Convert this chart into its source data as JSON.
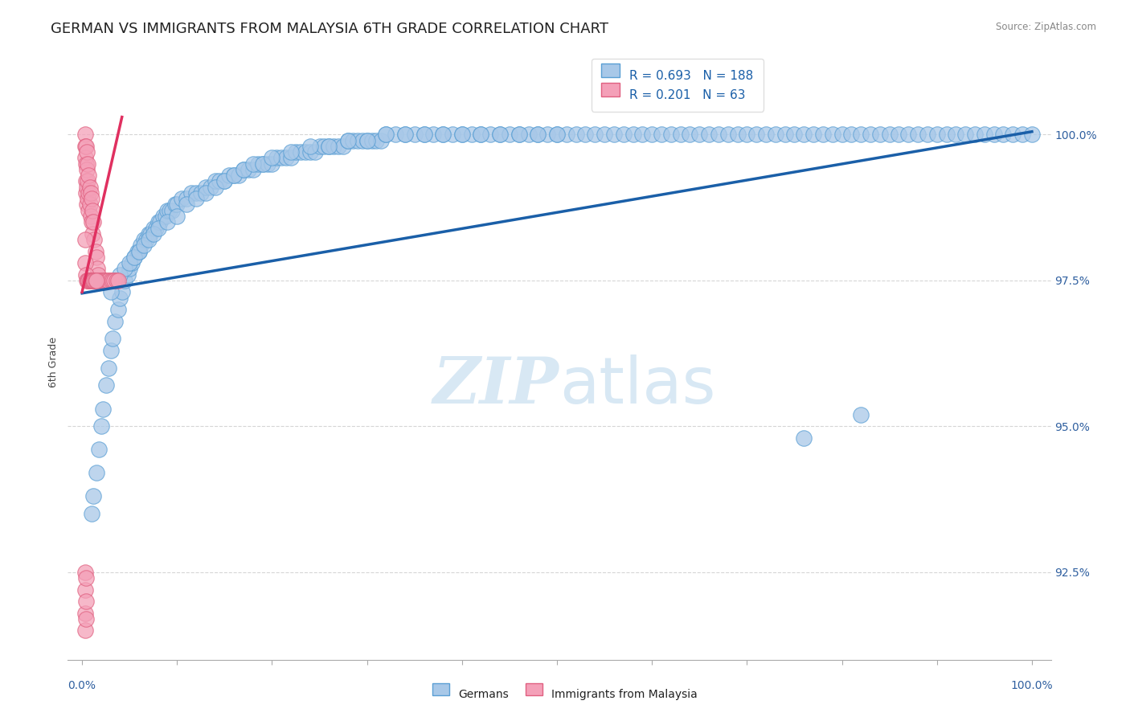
{
  "title": "GERMAN VS IMMIGRANTS FROM MALAYSIA 6TH GRADE CORRELATION CHART",
  "source_text": "Source: ZipAtlas.com",
  "ylabel": "6th Grade",
  "y_ticks": [
    92.5,
    95.0,
    97.5,
    100.0
  ],
  "y_tick_labels": [
    "92.5%",
    "95.0%",
    "97.5%",
    "100.0%"
  ],
  "blue_R": 0.693,
  "blue_N": 188,
  "pink_R": 0.201,
  "pink_N": 63,
  "blue_color": "#a8c8e8",
  "blue_edge_color": "#5a9fd4",
  "pink_color": "#f4a0b8",
  "pink_edge_color": "#e06080",
  "blue_line_color": "#1a5fa8",
  "pink_line_color": "#e03060",
  "legend_R_color": "#1a5fa8",
  "watermark_color": "#d8e8f4",
  "background_color": "#ffffff",
  "title_fontsize": 13,
  "axis_label_fontsize": 9,
  "legend_fontsize": 11,
  "marker_size": 14,
  "blue_line_x": [
    0,
    100
  ],
  "blue_line_y": [
    97.28,
    100.05
  ],
  "pink_line_x": [
    0,
    4.2
  ],
  "pink_line_y": [
    97.3,
    100.3
  ],
  "xlim": [
    -1.5,
    102
  ],
  "ylim": [
    91.0,
    101.2
  ],
  "blue_scatter_x": [
    1.0,
    1.2,
    1.5,
    1.8,
    2.0,
    2.2,
    2.5,
    2.8,
    3.0,
    3.2,
    3.5,
    3.8,
    4.0,
    4.2,
    4.5,
    4.8,
    5.0,
    5.2,
    5.5,
    5.8,
    6.0,
    6.2,
    6.5,
    6.8,
    7.0,
    7.2,
    7.5,
    7.8,
    8.0,
    8.2,
    8.5,
    8.8,
    9.0,
    9.2,
    9.5,
    9.8,
    10.0,
    10.5,
    11.0,
    11.5,
    12.0,
    12.5,
    13.0,
    13.5,
    14.0,
    14.5,
    15.0,
    15.5,
    16.0,
    16.5,
    17.0,
    17.5,
    18.0,
    18.5,
    19.0,
    19.5,
    20.0,
    20.5,
    21.0,
    21.5,
    22.0,
    22.5,
    23.0,
    23.5,
    24.0,
    24.5,
    25.0,
    25.5,
    26.0,
    26.5,
    27.0,
    27.5,
    28.0,
    28.5,
    29.0,
    29.5,
    30.0,
    30.5,
    31.0,
    31.5,
    32.0,
    33.0,
    34.0,
    35.0,
    36.0,
    37.0,
    38.0,
    39.0,
    40.0,
    41.0,
    42.0,
    43.0,
    44.0,
    45.0,
    46.0,
    47.0,
    48.0,
    49.0,
    50.0,
    51.0,
    52.0,
    53.0,
    54.0,
    55.0,
    56.0,
    57.0,
    58.0,
    59.0,
    60.0,
    61.0,
    62.0,
    63.0,
    64.0,
    65.0,
    66.0,
    67.0,
    68.0,
    69.0,
    70.0,
    71.0,
    72.0,
    73.0,
    74.0,
    75.0,
    76.0,
    77.0,
    78.0,
    79.0,
    80.0,
    81.0,
    82.0,
    83.0,
    84.0,
    85.0,
    86.0,
    87.0,
    88.0,
    89.0,
    90.0,
    91.0,
    92.0,
    93.0,
    94.0,
    95.0,
    96.0,
    97.0,
    98.0,
    99.0,
    100.0,
    3.0,
    3.5,
    4.0,
    4.5,
    5.0,
    5.5,
    6.0,
    6.5,
    7.0,
    7.5,
    8.0,
    9.0,
    10.0,
    11.0,
    12.0,
    13.0,
    14.0,
    15.0,
    16.0,
    17.0,
    18.0,
    19.0,
    20.0,
    22.0,
    24.0,
    26.0,
    28.0,
    30.0,
    32.0,
    34.0,
    36.0,
    38.0,
    40.0,
    42.0,
    44.0,
    46.0,
    48.0,
    50.0,
    76.0,
    82.0
  ],
  "blue_scatter_y": [
    93.5,
    93.8,
    94.2,
    94.6,
    95.0,
    95.3,
    95.7,
    96.0,
    96.3,
    96.5,
    96.8,
    97.0,
    97.2,
    97.3,
    97.5,
    97.6,
    97.7,
    97.8,
    97.9,
    98.0,
    98.0,
    98.1,
    98.2,
    98.2,
    98.3,
    98.3,
    98.4,
    98.4,
    98.5,
    98.5,
    98.6,
    98.6,
    98.7,
    98.7,
    98.7,
    98.8,
    98.8,
    98.9,
    98.9,
    99.0,
    99.0,
    99.0,
    99.1,
    99.1,
    99.2,
    99.2,
    99.2,
    99.3,
    99.3,
    99.3,
    99.4,
    99.4,
    99.4,
    99.5,
    99.5,
    99.5,
    99.5,
    99.6,
    99.6,
    99.6,
    99.6,
    99.7,
    99.7,
    99.7,
    99.7,
    99.7,
    99.8,
    99.8,
    99.8,
    99.8,
    99.8,
    99.8,
    99.9,
    99.9,
    99.9,
    99.9,
    99.9,
    99.9,
    99.9,
    99.9,
    100.0,
    100.0,
    100.0,
    100.0,
    100.0,
    100.0,
    100.0,
    100.0,
    100.0,
    100.0,
    100.0,
    100.0,
    100.0,
    100.0,
    100.0,
    100.0,
    100.0,
    100.0,
    100.0,
    100.0,
    100.0,
    100.0,
    100.0,
    100.0,
    100.0,
    100.0,
    100.0,
    100.0,
    100.0,
    100.0,
    100.0,
    100.0,
    100.0,
    100.0,
    100.0,
    100.0,
    100.0,
    100.0,
    100.0,
    100.0,
    100.0,
    100.0,
    100.0,
    100.0,
    100.0,
    100.0,
    100.0,
    100.0,
    100.0,
    100.0,
    100.0,
    100.0,
    100.0,
    100.0,
    100.0,
    100.0,
    100.0,
    100.0,
    100.0,
    100.0,
    100.0,
    100.0,
    100.0,
    100.0,
    100.0,
    100.0,
    100.0,
    100.0,
    100.0,
    97.3,
    97.5,
    97.6,
    97.7,
    97.8,
    97.9,
    98.0,
    98.1,
    98.2,
    98.3,
    98.4,
    98.5,
    98.6,
    98.8,
    98.9,
    99.0,
    99.1,
    99.2,
    99.3,
    99.4,
    99.5,
    99.5,
    99.6,
    99.7,
    99.8,
    99.8,
    99.9,
    99.9,
    100.0,
    100.0,
    100.0,
    100.0,
    100.0,
    100.0,
    100.0,
    100.0,
    100.0,
    100.0,
    94.8,
    95.2
  ],
  "pink_scatter_x": [
    0.3,
    0.3,
    0.3,
    0.4,
    0.4,
    0.4,
    0.4,
    0.5,
    0.5,
    0.5,
    0.5,
    0.6,
    0.6,
    0.6,
    0.7,
    0.7,
    0.7,
    0.8,
    0.8,
    0.9,
    0.9,
    1.0,
    1.0,
    1.1,
    1.1,
    1.2,
    1.3,
    1.4,
    1.5,
    1.6,
    1.7,
    1.8,
    2.0,
    2.2,
    2.4,
    2.6,
    2.8,
    3.0,
    3.2,
    3.4,
    3.6,
    3.8,
    0.3,
    0.3,
    0.4,
    0.5,
    0.6,
    0.7,
    0.8,
    0.9,
    1.0,
    1.1,
    1.2,
    1.3,
    1.4,
    1.5,
    0.3,
    0.3,
    0.3,
    0.3,
    0.4,
    0.4,
    0.4
  ],
  "pink_scatter_y": [
    100.0,
    99.8,
    99.6,
    99.8,
    99.5,
    99.2,
    99.0,
    99.7,
    99.4,
    99.1,
    98.8,
    99.5,
    99.2,
    98.9,
    99.3,
    99.0,
    98.7,
    99.1,
    98.8,
    99.0,
    98.6,
    98.9,
    98.5,
    98.7,
    98.3,
    98.5,
    98.2,
    98.0,
    97.9,
    97.7,
    97.6,
    97.5,
    97.5,
    97.5,
    97.5,
    97.5,
    97.5,
    97.5,
    97.5,
    97.5,
    97.5,
    97.5,
    98.2,
    97.8,
    97.6,
    97.5,
    97.5,
    97.5,
    97.5,
    97.5,
    97.5,
    97.5,
    97.5,
    97.5,
    97.5,
    97.5,
    92.5,
    92.2,
    91.8,
    91.5,
    92.4,
    92.0,
    91.7
  ]
}
